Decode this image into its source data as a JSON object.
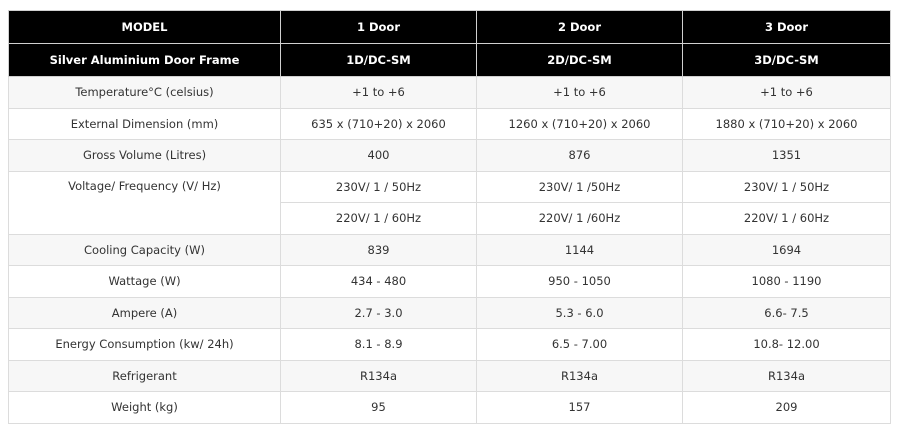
{
  "header": {
    "model_label": "MODEL",
    "columns": [
      "1 Door",
      "2 Door",
      "3 Door"
    ]
  },
  "subheader": {
    "label": "Silver Aluminium Door Frame",
    "codes": [
      "1D/DC-SM",
      "2D/DC-SM",
      "3D/DC-SM"
    ]
  },
  "rows": [
    {
      "label": "Temperature°C (celsius)",
      "values": [
        "+1 to +6",
        "+1 to +6",
        "+1 to +6"
      ]
    },
    {
      "label": "External Dimension (mm)",
      "values": [
        "635 x (710+20) x 2060",
        "1260 x (710+20) x 2060",
        "1880 x (710+20) x 2060"
      ]
    },
    {
      "label": "Gross Volume (Litres)",
      "values": [
        "400",
        "876",
        "1351"
      ]
    },
    {
      "label": "Voltage/ Frequency (V/  Hz)",
      "values": [
        "230V/ 1 / 50Hz",
        "230V/ 1 /50Hz",
        "230V/ 1 / 50Hz"
      ]
    },
    {
      "label": "",
      "values": [
        "220V/ 1 / 60Hz",
        "220V/ 1 /60Hz",
        "220V/ 1 / 60Hz"
      ]
    },
    {
      "label": "Cooling Capacity (W)",
      "values": [
        "839",
        "1144",
        "1694"
      ]
    },
    {
      "label": "Wattage (W)",
      "values": [
        "434 - 480",
        "950 - 1050",
        "1080 - 1190"
      ]
    },
    {
      "label": "Ampere (A)",
      "values": [
        "2.7 - 3.0",
        "5.3 - 6.0",
        "6.6- 7.5"
      ]
    },
    {
      "label": "Energy Consumption (kw/ 24h)",
      "values": [
        "8.1 - 8.9",
        "6.5 - 7.00",
        "10.8- 12.00"
      ]
    },
    {
      "label": "Refrigerant",
      "values": [
        "R134a",
        "R134a",
        "R134a"
      ]
    },
    {
      "label": "Weight (kg)",
      "values": [
        "95",
        "157",
        "209"
      ]
    }
  ]
}
